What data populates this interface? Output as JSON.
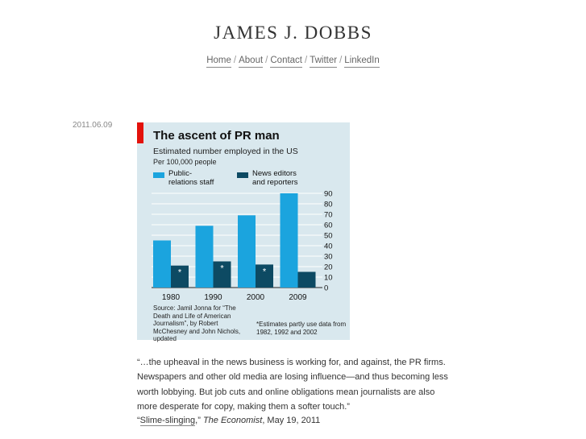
{
  "site": {
    "title": "JAMES J. DOBBS"
  },
  "nav": [
    {
      "label": "Home"
    },
    {
      "label": "About"
    },
    {
      "label": "Contact"
    },
    {
      "label": "Twitter"
    },
    {
      "label": "LinkedIn"
    }
  ],
  "nav_separator": "/",
  "post": {
    "date": "2011.06.09",
    "quote": "“…the upheaval in the news business is working for, and against, the PR firms. Newspapers and other old media are losing influence—and thus becoming less worth lobbying. But job cuts and online obligations mean journalists are also more desperate for copy, making them a softer touch.”",
    "citation": {
      "prefix": "“",
      "link_text": "Slime-slinging",
      "middle": ",” ",
      "publication": "The Economist",
      "date": ", May 19, 2011"
    }
  },
  "chart_data": {
    "type": "bar",
    "title": "The ascent of PR man",
    "subtitle": "Estimated number employed in the US",
    "unit_label": "Per 100,000 people",
    "categories": [
      "1980",
      "1990",
      "2000",
      "2009"
    ],
    "series": [
      {
        "name": "Public-relations staff",
        "legend_lines": [
          "Public-",
          "relations staff"
        ],
        "color": "#1ba4de",
        "values": [
          45,
          59,
          69,
          90
        ]
      },
      {
        "name": "News editors and reporters",
        "legend_lines": [
          "News editors",
          "and reporters"
        ],
        "color": "#0d4a63",
        "values": [
          21,
          25,
          22,
          15
        ],
        "starred": [
          true,
          true,
          true,
          false
        ]
      }
    ],
    "ylim": [
      0,
      90
    ],
    "yticks": [
      0,
      10,
      20,
      30,
      40,
      50,
      60,
      70,
      80,
      90
    ],
    "y_axis_side": "right",
    "grid": true,
    "legend_position": "top-left",
    "source": "Source: Jamil Jonna for “The Death and Life of American Journalism”, by Robert McChesney and John Nichols, updated",
    "note": "*Estimates partly use data from 1982, 1992 and 2002",
    "colors": {
      "background": "#d9e8ee",
      "accent": "#e3120b",
      "grid": "#ffffff"
    }
  }
}
